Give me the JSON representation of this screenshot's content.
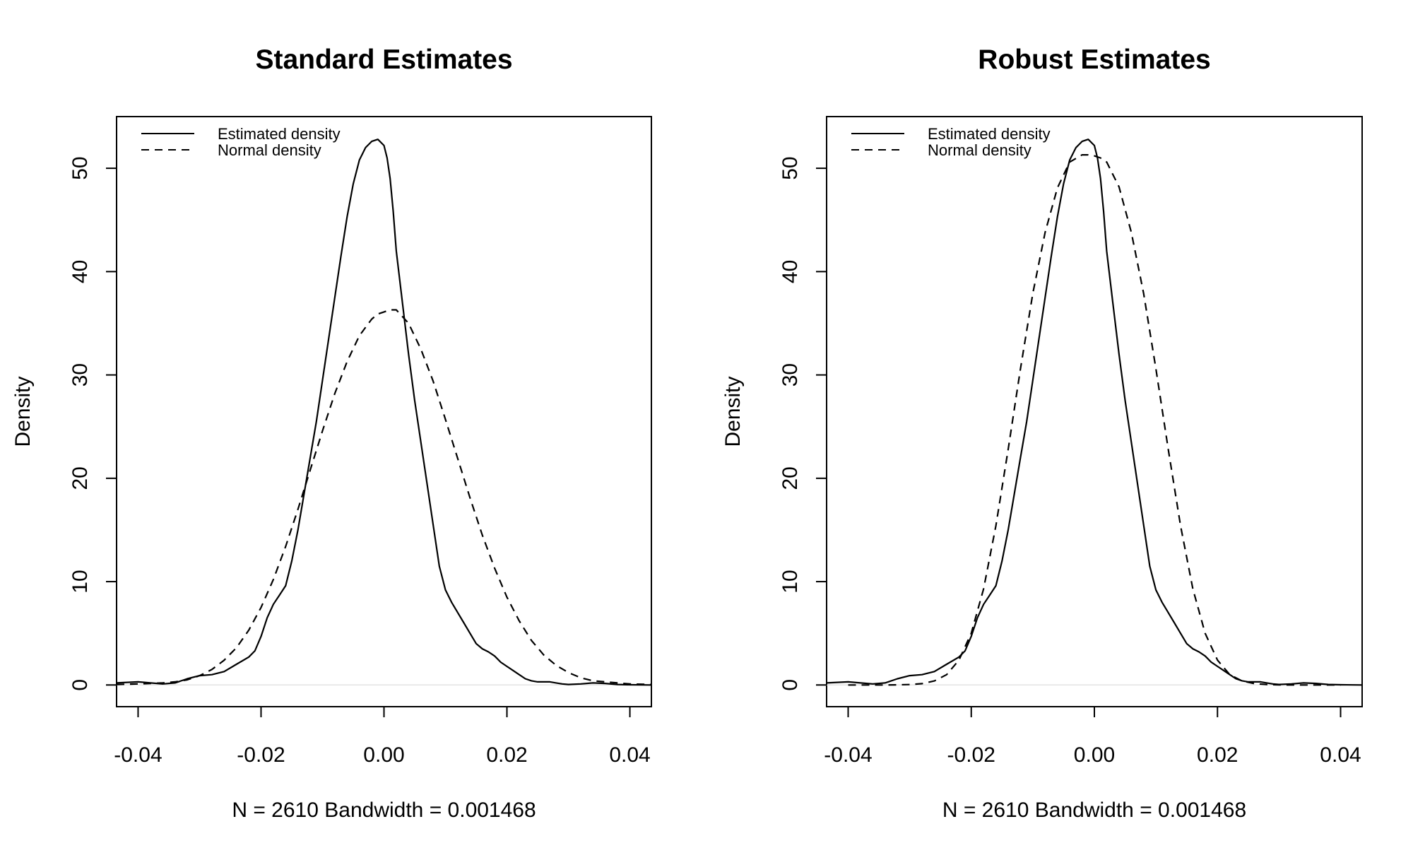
{
  "chart_data": [
    {
      "type": "line",
      "title": "Standard Estimates",
      "xlabel": "N = 2610   Bandwidth = 0.001468",
      "ylabel": "Density",
      "xlim": [
        -0.0435,
        0.0435
      ],
      "ylim": [
        -2.1,
        55
      ],
      "xticks": [
        -0.04,
        -0.02,
        0.0,
        0.02,
        0.04
      ],
      "xtick_labels": [
        "-0.04",
        "-0.02",
        "0.00",
        "0.02",
        "0.04"
      ],
      "yticks": [
        0,
        10,
        20,
        30,
        40,
        50
      ],
      "ytick_labels": [
        "0",
        "10",
        "20",
        "30",
        "40",
        "50"
      ],
      "legend": {
        "position": "top-left",
        "entries": [
          "Estimated density",
          "Normal density"
        ]
      },
      "series": [
        {
          "name": "Estimated density",
          "style": "solid",
          "x": [
            -0.0435,
            -0.04,
            -0.038,
            -0.036,
            -0.034,
            -0.032,
            -0.03,
            -0.028,
            -0.026,
            -0.024,
            -0.022,
            -0.021,
            -0.02,
            -0.019,
            -0.018,
            -0.017,
            -0.016,
            -0.015,
            -0.014,
            -0.013,
            -0.012,
            -0.011,
            -0.01,
            -0.009,
            -0.008,
            -0.007,
            -0.006,
            -0.005,
            -0.004,
            -0.003,
            -0.002,
            -0.001,
            0.0,
            0.0005,
            0.001,
            0.0015,
            0.002,
            0.003,
            0.004,
            0.005,
            0.006,
            0.007,
            0.008,
            0.009,
            0.01,
            0.011,
            0.012,
            0.013,
            0.014,
            0.015,
            0.016,
            0.017,
            0.018,
            0.019,
            0.02,
            0.021,
            0.022,
            0.023,
            0.024,
            0.025,
            0.026,
            0.027,
            0.028,
            0.029,
            0.03,
            0.032,
            0.034,
            0.036,
            0.038,
            0.04,
            0.0435
          ],
          "y": [
            0.2,
            0.3,
            0.2,
            0.1,
            0.2,
            0.6,
            0.9,
            1.0,
            1.3,
            2.0,
            2.7,
            3.3,
            4.7,
            6.5,
            7.8,
            8.7,
            9.6,
            12.0,
            15.0,
            18.5,
            22.0,
            25.5,
            29.5,
            33.5,
            37.5,
            41.5,
            45.3,
            48.5,
            50.8,
            52.0,
            52.6,
            52.8,
            52.2,
            51.0,
            49.0,
            45.8,
            42.0,
            37.0,
            32.0,
            27.5,
            23.5,
            19.5,
            15.5,
            11.5,
            9.2,
            8.0,
            7.0,
            6.0,
            5.0,
            4.0,
            3.5,
            3.2,
            2.8,
            2.2,
            1.8,
            1.4,
            1.0,
            0.6,
            0.4,
            0.3,
            0.3,
            0.3,
            0.2,
            0.1,
            0.05,
            0.1,
            0.2,
            0.15,
            0.05,
            0.02,
            0.0
          ]
        },
        {
          "name": "Normal density",
          "style": "dashed",
          "x": [
            -0.0435,
            -0.04,
            -0.038,
            -0.036,
            -0.034,
            -0.032,
            -0.03,
            -0.028,
            -0.026,
            -0.024,
            -0.022,
            -0.02,
            -0.018,
            -0.016,
            -0.014,
            -0.012,
            -0.01,
            -0.008,
            -0.006,
            -0.004,
            -0.002,
            -0.001,
            0.0,
            0.001,
            0.002,
            0.004,
            0.006,
            0.008,
            0.01,
            0.012,
            0.014,
            0.016,
            0.018,
            0.02,
            0.022,
            0.024,
            0.026,
            0.028,
            0.03,
            0.032,
            0.034,
            0.036,
            0.038,
            0.04,
            0.0435
          ],
          "y": [
            0.05,
            0.1,
            0.15,
            0.2,
            0.3,
            0.5,
            0.9,
            1.5,
            2.4,
            3.6,
            5.3,
            7.5,
            10.2,
            13.4,
            17.0,
            20.8,
            24.6,
            28.2,
            31.3,
            33.8,
            35.4,
            35.9,
            36.1,
            36.3,
            36.3,
            35.0,
            32.5,
            29.4,
            25.7,
            21.9,
            18.1,
            14.5,
            11.3,
            8.5,
            6.2,
            4.3,
            2.9,
            1.9,
            1.2,
            0.7,
            0.4,
            0.3,
            0.2,
            0.1,
            0.05
          ]
        }
      ]
    },
    {
      "type": "line",
      "title": "Robust Estimates",
      "xlabel": "N = 2610   Bandwidth = 0.001468",
      "ylabel": "Density",
      "xlim": [
        -0.0435,
        0.0435
      ],
      "ylim": [
        -2.1,
        55
      ],
      "xticks": [
        -0.04,
        -0.02,
        0.0,
        0.02,
        0.04
      ],
      "xtick_labels": [
        "-0.04",
        "-0.02",
        "0.00",
        "0.02",
        "0.04"
      ],
      "yticks": [
        0,
        10,
        20,
        30,
        40,
        50
      ],
      "ytick_labels": [
        "0",
        "10",
        "20",
        "30",
        "40",
        "50"
      ],
      "legend": {
        "position": "top-left",
        "entries": [
          "Estimated density",
          "Normal density"
        ]
      },
      "series": [
        {
          "name": "Estimated density",
          "style": "solid",
          "x": [
            -0.0435,
            -0.04,
            -0.038,
            -0.036,
            -0.034,
            -0.032,
            -0.03,
            -0.028,
            -0.026,
            -0.024,
            -0.022,
            -0.021,
            -0.02,
            -0.019,
            -0.018,
            -0.017,
            -0.016,
            -0.015,
            -0.014,
            -0.013,
            -0.012,
            -0.011,
            -0.01,
            -0.009,
            -0.008,
            -0.007,
            -0.006,
            -0.005,
            -0.004,
            -0.003,
            -0.002,
            -0.001,
            0.0,
            0.0005,
            0.001,
            0.0015,
            0.002,
            0.003,
            0.004,
            0.005,
            0.006,
            0.007,
            0.008,
            0.009,
            0.01,
            0.011,
            0.012,
            0.013,
            0.014,
            0.015,
            0.016,
            0.017,
            0.018,
            0.019,
            0.02,
            0.021,
            0.022,
            0.023,
            0.024,
            0.025,
            0.026,
            0.027,
            0.028,
            0.029,
            0.03,
            0.032,
            0.034,
            0.036,
            0.038,
            0.04,
            0.0435
          ],
          "y": [
            0.2,
            0.3,
            0.2,
            0.1,
            0.2,
            0.6,
            0.9,
            1.0,
            1.3,
            2.0,
            2.7,
            3.3,
            4.7,
            6.5,
            7.8,
            8.7,
            9.6,
            12.0,
            15.0,
            18.5,
            22.0,
            25.5,
            29.5,
            33.5,
            37.5,
            41.5,
            45.3,
            48.5,
            50.8,
            52.0,
            52.6,
            52.8,
            52.2,
            51.0,
            49.0,
            45.8,
            42.0,
            37.0,
            32.0,
            27.5,
            23.5,
            19.5,
            15.5,
            11.5,
            9.2,
            8.0,
            7.0,
            6.0,
            5.0,
            4.0,
            3.5,
            3.2,
            2.8,
            2.2,
            1.8,
            1.4,
            1.0,
            0.6,
            0.4,
            0.3,
            0.3,
            0.3,
            0.2,
            0.1,
            0.05,
            0.1,
            0.2,
            0.15,
            0.05,
            0.02,
            0.0
          ]
        },
        {
          "name": "Normal density",
          "style": "dashed",
          "x": [
            -0.04,
            -0.038,
            -0.036,
            -0.034,
            -0.032,
            -0.03,
            -0.028,
            -0.026,
            -0.024,
            -0.022,
            -0.02,
            -0.018,
            -0.016,
            -0.014,
            -0.012,
            -0.01,
            -0.008,
            -0.006,
            -0.004,
            -0.002,
            -0.001,
            0.0,
            0.001,
            0.002,
            0.004,
            0.006,
            0.008,
            0.01,
            0.012,
            0.014,
            0.016,
            0.018,
            0.02,
            0.022,
            0.024,
            0.026,
            0.028,
            0.03,
            0.032,
            0.034,
            0.036,
            0.038,
            0.04
          ],
          "y": [
            0.0,
            0.0,
            0.0,
            0.0,
            0.01,
            0.04,
            0.13,
            0.39,
            1.0,
            2.4,
            5.0,
            9.3,
            15.4,
            22.8,
            30.6,
            37.9,
            43.8,
            48.1,
            50.6,
            51.3,
            51.3,
            51.2,
            51.0,
            50.6,
            48.2,
            43.8,
            37.9,
            30.6,
            22.8,
            15.4,
            9.3,
            5.0,
            2.4,
            1.0,
            0.39,
            0.13,
            0.04,
            0.01,
            0.0,
            0.0,
            0.0,
            0.0,
            0.0
          ]
        }
      ]
    }
  ]
}
